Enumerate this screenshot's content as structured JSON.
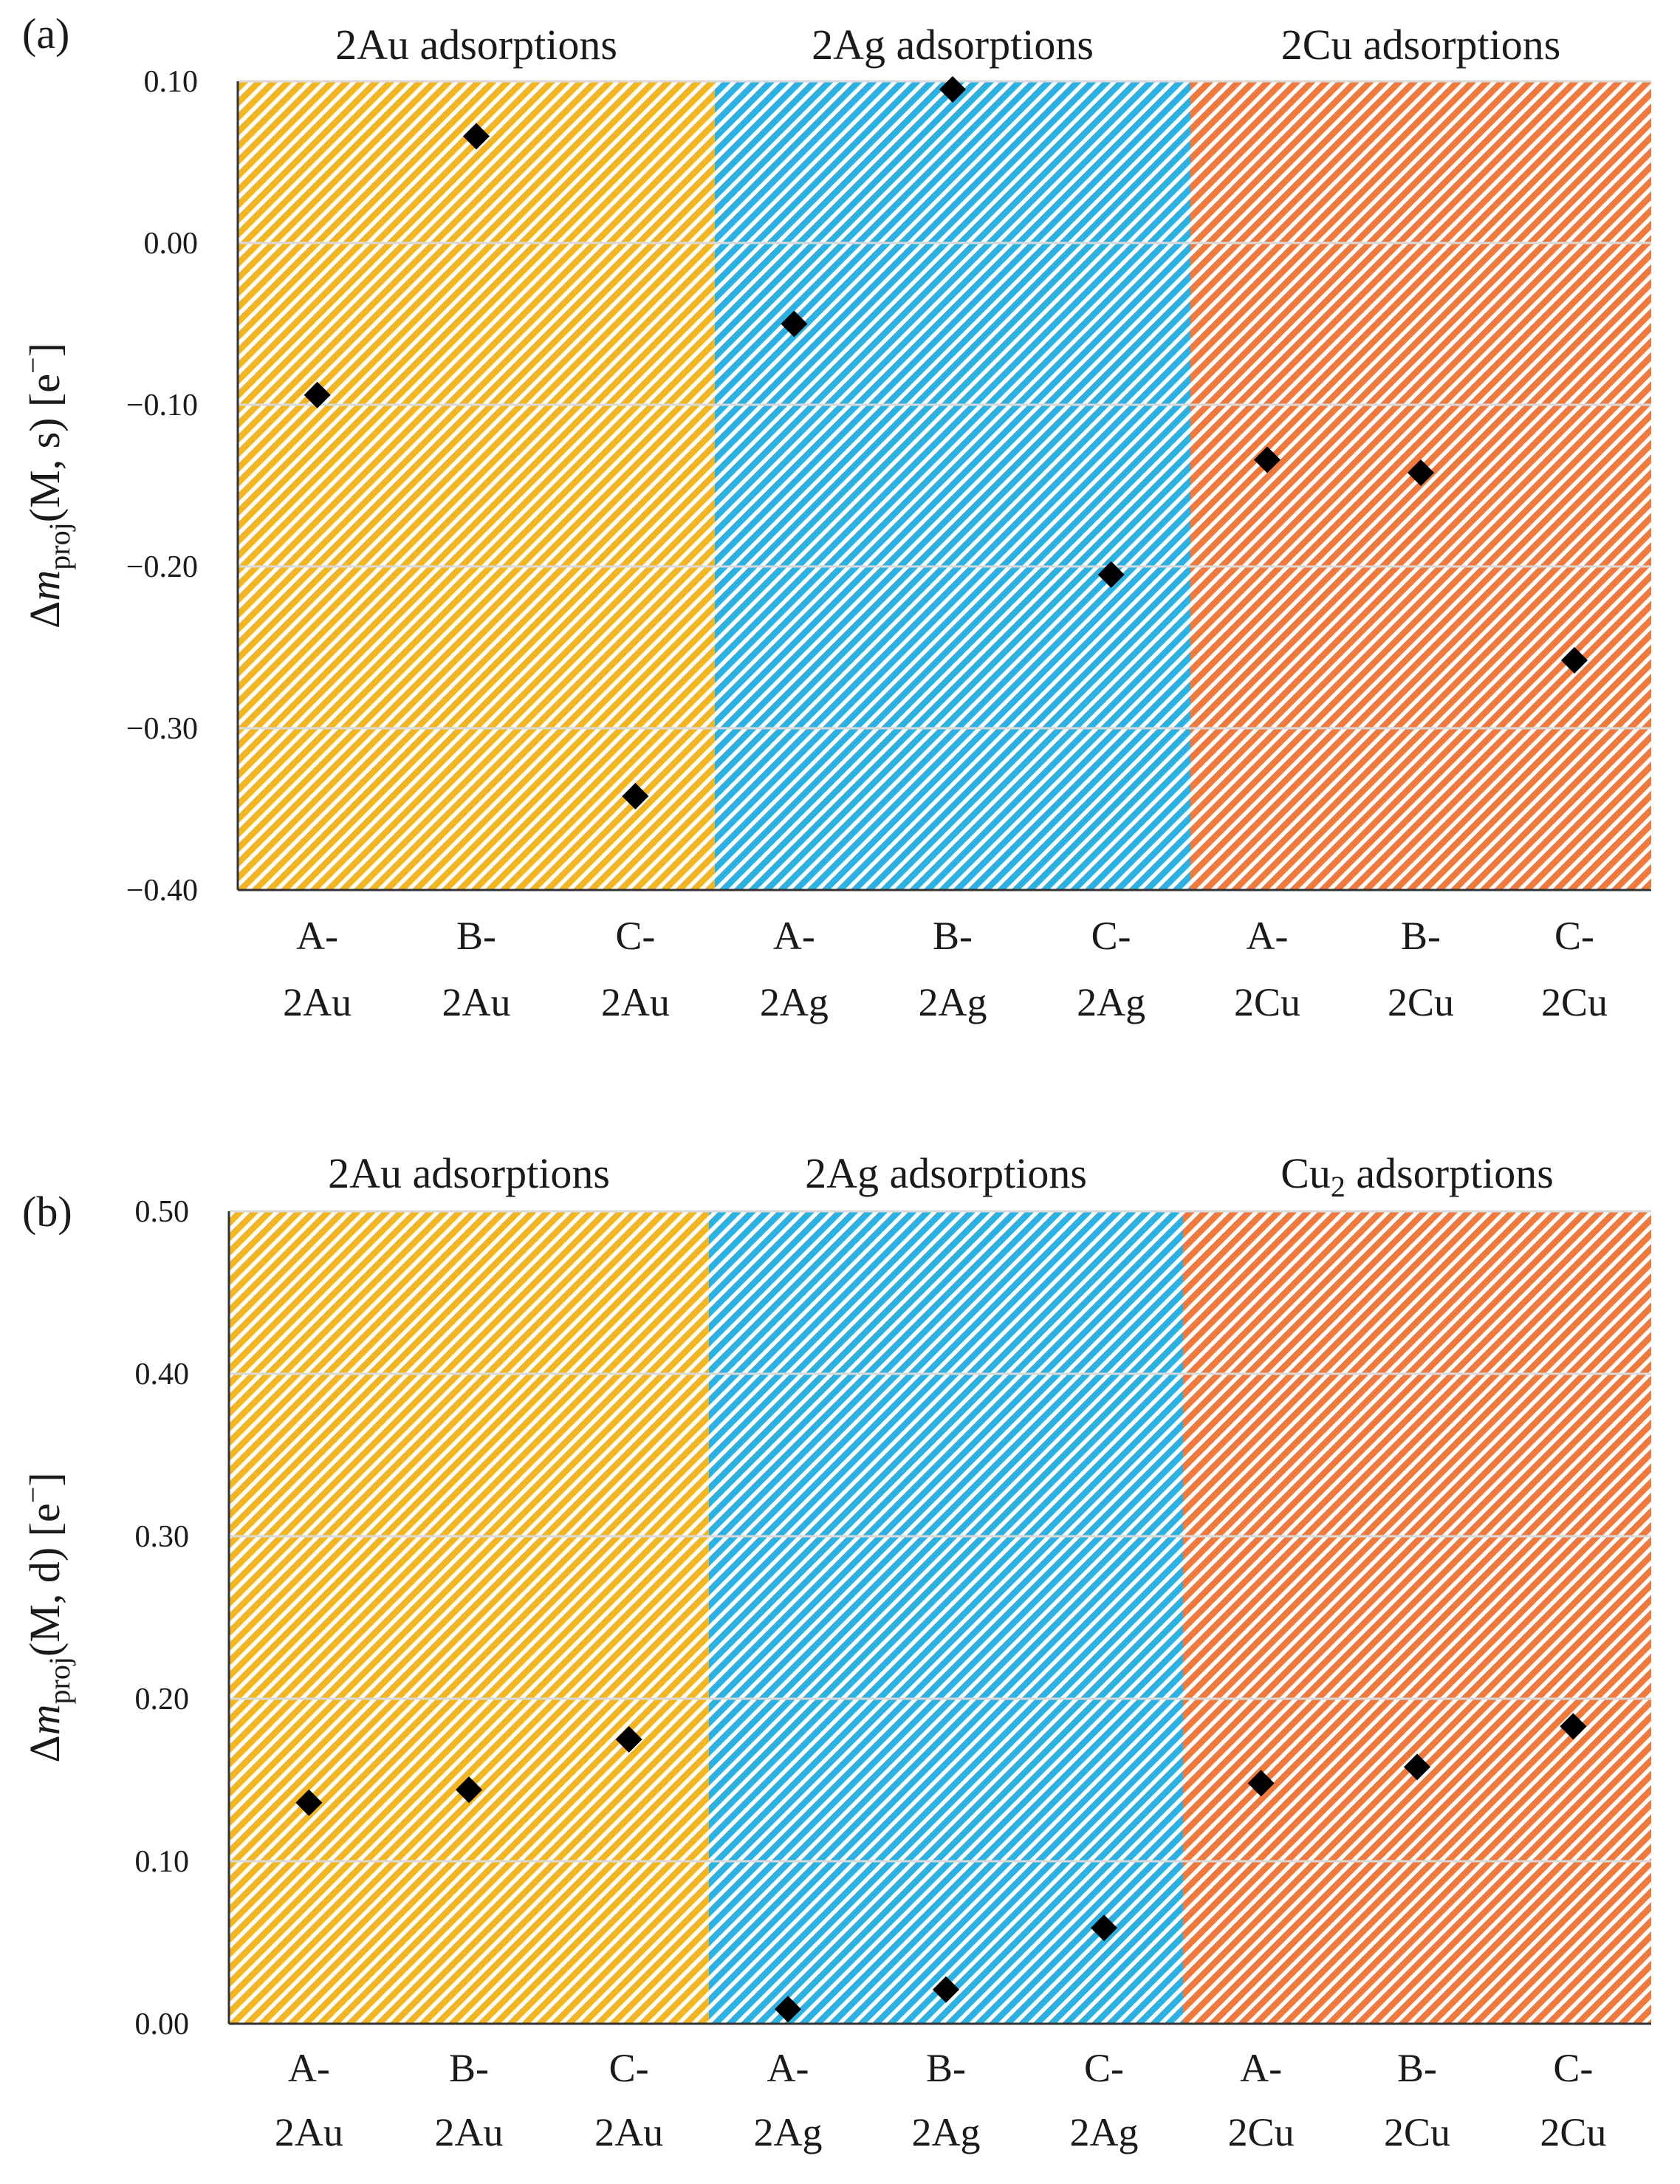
{
  "chart_data": [
    {
      "type": "scatter",
      "panel_label": "(a)",
      "ylabel_prefix": "Δ",
      "ylabel_var": "m",
      "ylabel_sub": "proj",
      "ylabel_rest": "(M, s) [e",
      "ylabel_sup": "−",
      "ylabel_close": "]",
      "ylim": [
        -0.4,
        0.1
      ],
      "yticks": [
        -0.4,
        -0.3,
        -0.2,
        -0.1,
        0.0,
        0.1
      ],
      "ytick_labels": [
        "−0.40",
        "−0.30",
        "−0.20",
        "−0.10",
        "0.00",
        "0.10"
      ],
      "grid": true,
      "groups": [
        {
          "label": "2Au adsorptions",
          "color": "#f3b623",
          "categories": [
            [
              "A-",
              "2Au"
            ],
            [
              "B-",
              "2Au"
            ],
            [
              "C-",
              "2Au"
            ]
          ],
          "values": [
            -0.094,
            0.066,
            -0.342
          ]
        },
        {
          "label": "2Ag adsorptions",
          "color": "#2cb2e2",
          "categories": [
            [
              "A-",
              "2Ag"
            ],
            [
              "B-",
              "2Ag"
            ],
            [
              "C-",
              "2Ag"
            ]
          ],
          "values": [
            -0.05,
            0.095,
            -0.205
          ]
        },
        {
          "label": "2Cu adsorptions",
          "color": "#f07a3e",
          "categories": [
            [
              "A-",
              "2Cu"
            ],
            [
              "B-",
              "2Cu"
            ],
            [
              "C-",
              "2Cu"
            ]
          ],
          "values": [
            -0.134,
            -0.142,
            -0.258
          ]
        }
      ]
    },
    {
      "type": "scatter",
      "panel_label": "(b)",
      "ylabel_prefix": "Δ",
      "ylabel_var": "m",
      "ylabel_sub": "proj",
      "ylabel_rest": "(M, d) [e",
      "ylabel_sup": "−",
      "ylabel_close": "]",
      "ylim": [
        0.0,
        0.5
      ],
      "yticks": [
        0.0,
        0.1,
        0.2,
        0.3,
        0.4,
        0.5
      ],
      "ytick_labels": [
        "0.00",
        "0.10",
        "0.20",
        "0.30",
        "0.40",
        "0.50"
      ],
      "grid": true,
      "groups": [
        {
          "label": "2Au adsorptions",
          "color": "#f3b623",
          "categories": [
            [
              "A-",
              "2Au"
            ],
            [
              "B-",
              "2Au"
            ],
            [
              "C-",
              "2Au"
            ]
          ],
          "values": [
            0.136,
            0.144,
            0.175
          ]
        },
        {
          "label": "2Ag adsorptions",
          "color": "#2cb2e2",
          "categories": [
            [
              "A-",
              "2Ag"
            ],
            [
              "B-",
              "2Ag"
            ],
            [
              "C-",
              "2Ag"
            ]
          ],
          "values": [
            0.009,
            0.021,
            0.059
          ]
        },
        {
          "label": "Cu",
          "label_sub": "2",
          "label_rest": " adsorptions",
          "color": "#f07a3e",
          "categories": [
            [
              "A-",
              "2Cu"
            ],
            [
              "B-",
              "2Cu"
            ],
            [
              "C-",
              "2Cu"
            ]
          ],
          "values": [
            0.148,
            0.158,
            0.183
          ]
        }
      ]
    }
  ]
}
